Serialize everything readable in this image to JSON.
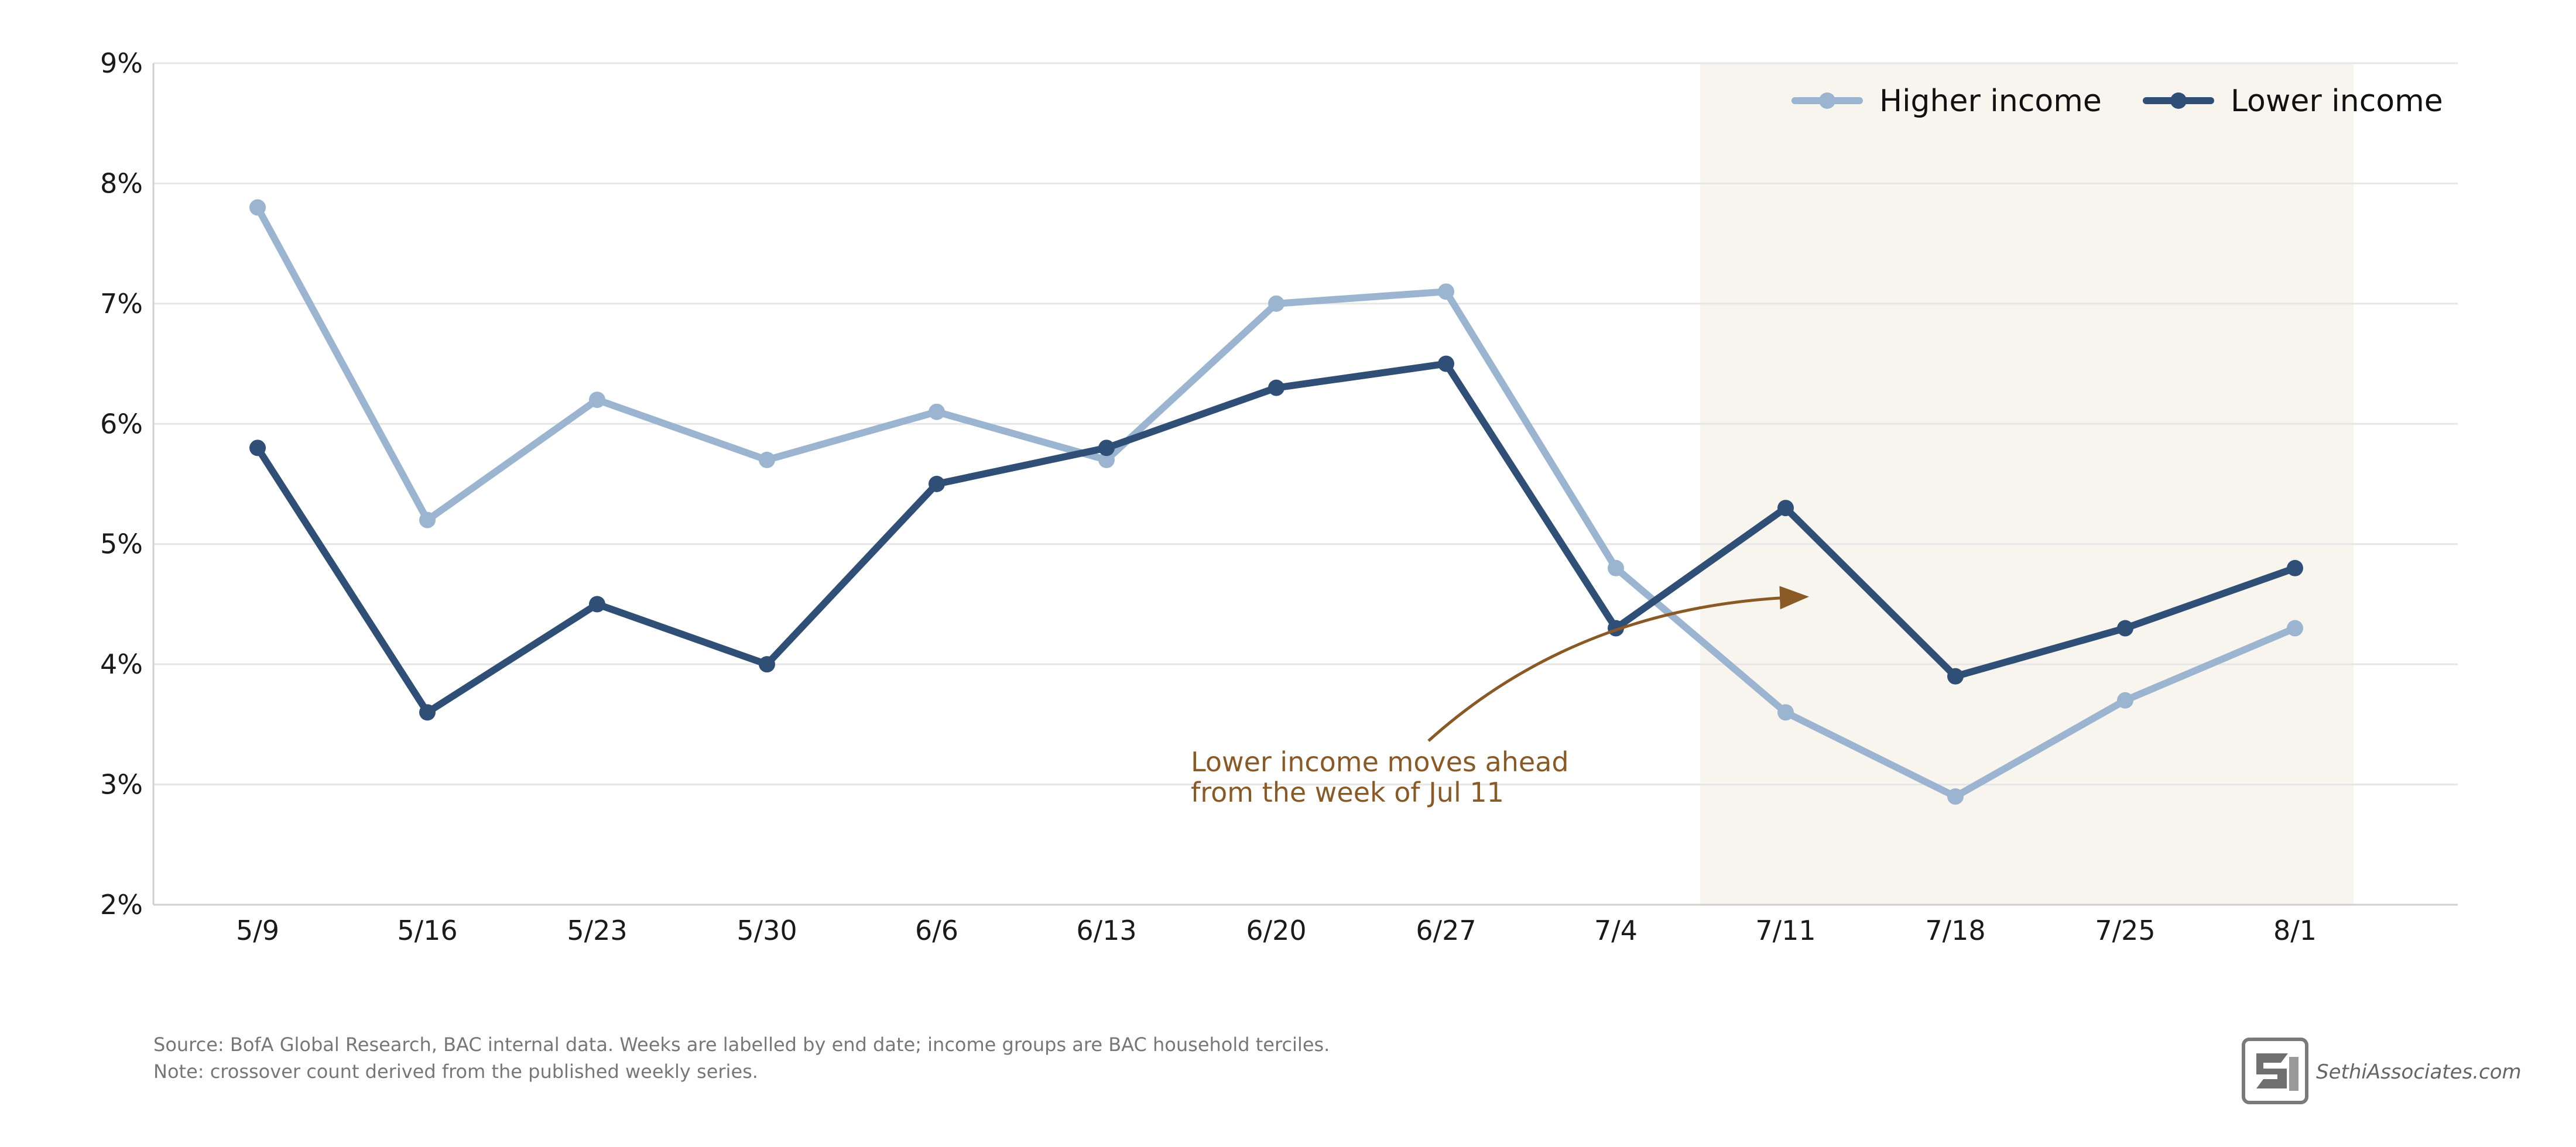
{
  "chart_data": {
    "type": "line",
    "title": "",
    "xlabel": "",
    "ylabel": "",
    "categories": [
      "5/9",
      "5/16",
      "5/23",
      "5/30",
      "6/6",
      "6/13",
      "6/20",
      "6/27",
      "7/4",
      "7/11",
      "7/18",
      "7/25",
      "8/1"
    ],
    "ylim": [
      2,
      9
    ],
    "yticks": [
      2,
      3,
      4,
      5,
      6,
      7,
      8,
      9
    ],
    "ytick_labels": [
      "2%",
      "3%",
      "4%",
      "5%",
      "6%",
      "7%",
      "8%",
      "9%"
    ],
    "y_unit": "%",
    "grid": "horizontal",
    "legend_position": "top-right",
    "series": [
      {
        "name": "Higher income",
        "color": "#9bb4d0",
        "values": [
          7.8,
          5.2,
          6.2,
          5.7,
          6.1,
          5.7,
          7.0,
          7.1,
          4.8,
          3.6,
          2.9,
          3.7,
          4.3
        ]
      },
      {
        "name": "Lower income",
        "color": "#2f4f77",
        "values": [
          5.8,
          3.6,
          4.5,
          4.0,
          5.5,
          5.8,
          6.3,
          6.5,
          4.3,
          5.3,
          3.9,
          4.3,
          4.8
        ]
      }
    ],
    "highlight_region": {
      "from_category": "7/11",
      "to_category": "8/1",
      "color": "#f8f5ef"
    },
    "annotation": {
      "lines": [
        "Lower income moves ahead",
        "from the week of Jul 11"
      ],
      "color": "#8a5a26",
      "points_to_category": "7/11"
    }
  },
  "footnotes": {
    "source": "Source: BofA Global Research, BAC internal data. Weeks are labelled by end date; income groups are BAC household terciles.",
    "note": "Note: crossover count derived from the published weekly series."
  },
  "logo": {
    "text": "SethiAssociates.com",
    "icon": "sethi-associates-logo-icon"
  }
}
